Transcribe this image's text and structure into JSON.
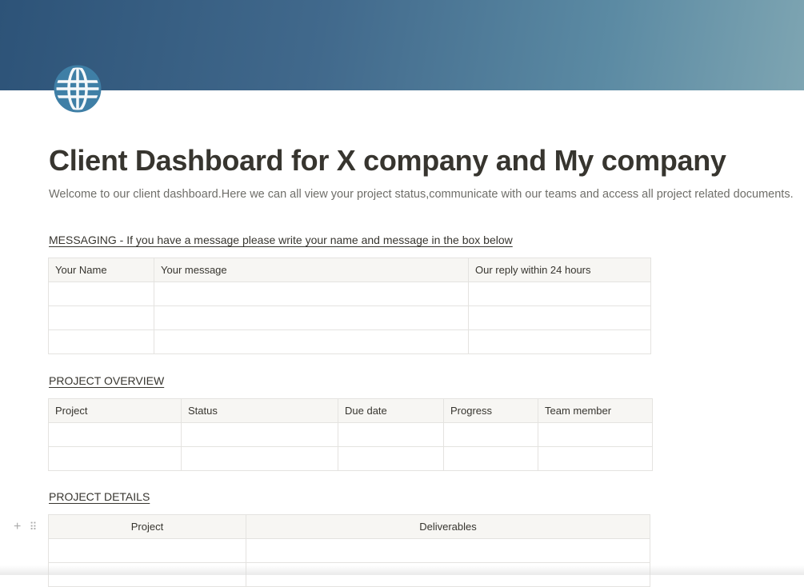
{
  "banner": {
    "gradient_start": "#2d5378",
    "gradient_end": "#7ea5b2"
  },
  "icon": {
    "name": "globe-icon",
    "color": "#3f7fa6"
  },
  "title": "Client Dashboard for X company and My company",
  "subtitle": "Welcome to our client dashboard.Here we can all view your project status,communicate with our teams and access all project related documents.",
  "messaging": {
    "heading": "MESSAGING - If you have a message please write your name and message in the box below ",
    "columns": [
      "Your Name",
      "Your message",
      "Our reply within 24 hours"
    ]
  },
  "overview": {
    "heading": "PROJECT OVERVIEW ",
    "columns": [
      "Project",
      "Status",
      "Due date",
      "Progress",
      "Team member"
    ]
  },
  "details": {
    "heading": "PROJECT DETAILS ",
    "columns": [
      "Project",
      "Deliverables"
    ]
  },
  "block_handle": {
    "add": "+",
    "drag": "⠿"
  }
}
